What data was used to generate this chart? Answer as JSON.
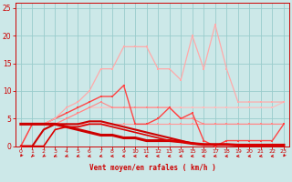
{
  "background_color": "#cce8e8",
  "grid_color": "#99cccc",
  "xlabel": "Vent moyen/en rafales ( km/h )",
  "xlabel_color": "#cc0000",
  "tick_color": "#cc0000",
  "ylim": [
    0,
    26
  ],
  "xlim": [
    -0.5,
    23.5
  ],
  "yticks": [
    0,
    5,
    10,
    15,
    20,
    25
  ],
  "xticks": [
    0,
    1,
    2,
    3,
    4,
    5,
    6,
    7,
    8,
    9,
    10,
    11,
    12,
    13,
    14,
    15,
    16,
    17,
    18,
    19,
    20,
    21,
    22,
    23
  ],
  "lines": [
    {
      "x": [
        0,
        1,
        2,
        3,
        4,
        5,
        6,
        7,
        8,
        9,
        10,
        11,
        12,
        13,
        14,
        15,
        16,
        17,
        18,
        19,
        20,
        21,
        22,
        23
      ],
      "y": [
        4,
        4,
        4,
        4,
        4,
        4,
        4,
        4,
        4,
        4,
        4,
        4,
        4,
        4,
        4,
        4,
        4,
        4,
        4,
        4,
        4,
        4,
        4,
        4
      ],
      "color": "#ff9999",
      "lw": 0.8,
      "marker": "s",
      "ms": 1.8
    },
    {
      "x": [
        0,
        1,
        2,
        3,
        4,
        5,
        6,
        7,
        8,
        9,
        10,
        11,
        12,
        13,
        14,
        15,
        16,
        17,
        18,
        19,
        20,
        21,
        22,
        23
      ],
      "y": [
        4,
        4,
        4,
        4,
        5,
        6,
        7,
        7,
        7,
        7,
        7,
        7,
        7,
        7,
        7,
        7,
        7,
        7,
        7,
        7,
        7,
        7,
        7,
        8
      ],
      "color": "#ffbbbb",
      "lw": 0.8,
      "marker": "s",
      "ms": 1.8
    },
    {
      "x": [
        0,
        1,
        2,
        3,
        4,
        5,
        6,
        7,
        8,
        9,
        10,
        11,
        12,
        13,
        14,
        15,
        16,
        17,
        18,
        19,
        20,
        21,
        22,
        23
      ],
      "y": [
        0,
        4,
        4,
        4,
        5,
        6,
        7,
        8,
        7,
        7,
        7,
        7,
        7,
        7,
        5,
        5,
        4,
        4,
        4,
        4,
        4,
        4,
        4,
        4
      ],
      "color": "#ff8888",
      "lw": 0.8,
      "marker": "s",
      "ms": 1.8
    },
    {
      "x": [
        0,
        1,
        2,
        3,
        4,
        5,
        6,
        7,
        8,
        9,
        10,
        11,
        12,
        13,
        14,
        15,
        16,
        17,
        18,
        19,
        20,
        21,
        22,
        23
      ],
      "y": [
        0,
        4,
        4,
        5,
        6,
        7,
        8,
        9,
        9,
        11,
        4,
        4,
        5,
        7,
        5,
        6,
        1,
        0,
        1,
        1,
        1,
        1,
        1,
        4
      ],
      "color": "#ff4444",
      "lw": 1.0,
      "marker": "s",
      "ms": 2.0
    },
    {
      "x": [
        0,
        1,
        2,
        3,
        4,
        5,
        6,
        7,
        8,
        9,
        10,
        11,
        12,
        13,
        14,
        15,
        16,
        17,
        18,
        19,
        20,
        21,
        22,
        23
      ],
      "y": [
        4,
        4,
        4,
        5,
        7,
        8,
        10,
        14,
        14,
        18,
        18,
        18,
        14,
        14,
        12,
        20,
        14,
        22,
        14,
        8,
        8,
        8,
        8,
        8
      ],
      "color": "#ffaaaa",
      "lw": 0.9,
      "marker": "s",
      "ms": 2.0
    },
    {
      "x": [
        0,
        1,
        2,
        3,
        4,
        5,
        6,
        7,
        8,
        9,
        10,
        11,
        12,
        13,
        14,
        15,
        16,
        17,
        18,
        19,
        20,
        21,
        22,
        23
      ],
      "y": [
        4,
        4,
        4,
        4,
        3.5,
        3,
        2.5,
        2,
        2,
        1.5,
        1.5,
        1,
        1,
        1,
        0.8,
        0.5,
        0.3,
        0.3,
        0.3,
        0.2,
        0.2,
        0.2,
        0.2,
        0.2
      ],
      "color": "#cc0000",
      "lw": 2.2,
      "marker": null,
      "ms": 0
    },
    {
      "x": [
        0,
        1,
        2,
        3,
        4,
        5,
        6,
        7,
        8,
        9,
        10,
        11,
        12,
        13,
        14,
        15,
        16,
        17,
        18,
        19,
        20,
        21,
        22,
        23
      ],
      "y": [
        0,
        0,
        3,
        4,
        4,
        4,
        4.5,
        4.5,
        4,
        3.5,
        3,
        2.5,
        2,
        1.5,
        1,
        0.5,
        0.3,
        0.3,
        0.3,
        0.2,
        0.2,
        0.2,
        0.2,
        0.2
      ],
      "color": "#cc0000",
      "lw": 1.5,
      "marker": null,
      "ms": 0
    },
    {
      "x": [
        0,
        1,
        2,
        3,
        4,
        5,
        6,
        7,
        8,
        9,
        10,
        11,
        12,
        13,
        14,
        15,
        16,
        17,
        18,
        19,
        20,
        21,
        22,
        23
      ],
      "y": [
        0,
        0,
        0,
        3,
        3.5,
        3.5,
        4,
        4,
        3.5,
        3,
        2.5,
        2,
        1.5,
        1,
        0.8,
        0.5,
        0.3,
        0.3,
        0.3,
        0.2,
        0.2,
        0.2,
        0.2,
        0.2
      ],
      "color": "#dd0000",
      "lw": 1.2,
      "marker": null,
      "ms": 0
    }
  ],
  "arrow_color": "#cc0000",
  "arrow_angles": [
    200,
    210,
    220,
    230,
    235,
    240,
    245,
    250,
    255,
    260,
    265,
    265,
    260,
    255,
    250,
    255,
    260,
    250,
    255,
    260,
    255,
    250,
    255,
    200
  ]
}
